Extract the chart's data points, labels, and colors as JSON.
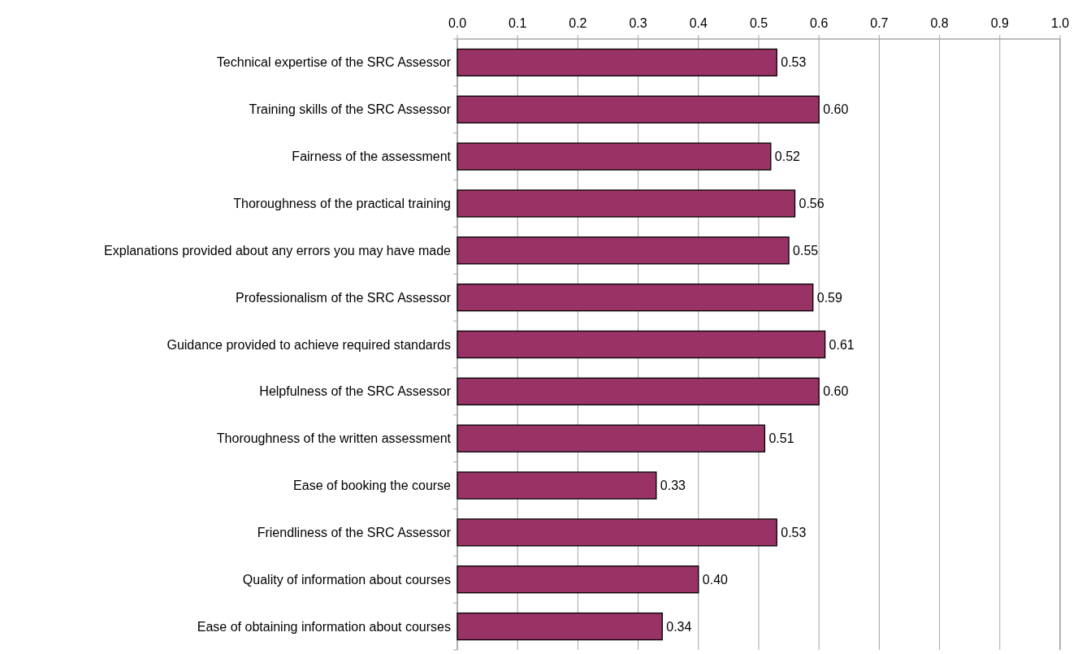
{
  "chart_data": {
    "type": "bar",
    "orientation": "horizontal",
    "categories": [
      "Technical expertise of the SRC Assessor",
      "Training skills of the SRC Assessor",
      "Fairness of the assessment",
      "Thoroughness of the practical training",
      "Explanations provided about any errors you may have made",
      "Professionalism of the SRC Assessor",
      "Guidance provided to achieve required standards",
      "Helpfulness of the SRC Assessor",
      "Thoroughness of the written assessment",
      "Ease of booking the course",
      "Friendliness of the SRC Assessor",
      "Quality of information about courses",
      "Ease of obtaining information about courses"
    ],
    "values": [
      0.53,
      0.6,
      0.52,
      0.56,
      0.55,
      0.59,
      0.61,
      0.6,
      0.51,
      0.33,
      0.53,
      0.4,
      0.34
    ],
    "value_labels": [
      "0.53",
      "0.60",
      "0.52",
      "0.56",
      "0.55",
      "0.59",
      "0.61",
      "0.60",
      "0.51",
      "0.33",
      "0.53",
      "0.40",
      "0.34"
    ],
    "color": "#993366",
    "xlim": [
      0,
      1
    ],
    "xticks": [
      {
        "value": 0,
        "label": "0.0"
      },
      0.1,
      0.2,
      0.3,
      0.4,
      0.5,
      0.6,
      0.7,
      0.8,
      0.9,
      {
        "value": 1,
        "label": "1.0"
      }
    ],
    "grid": "x"
  }
}
